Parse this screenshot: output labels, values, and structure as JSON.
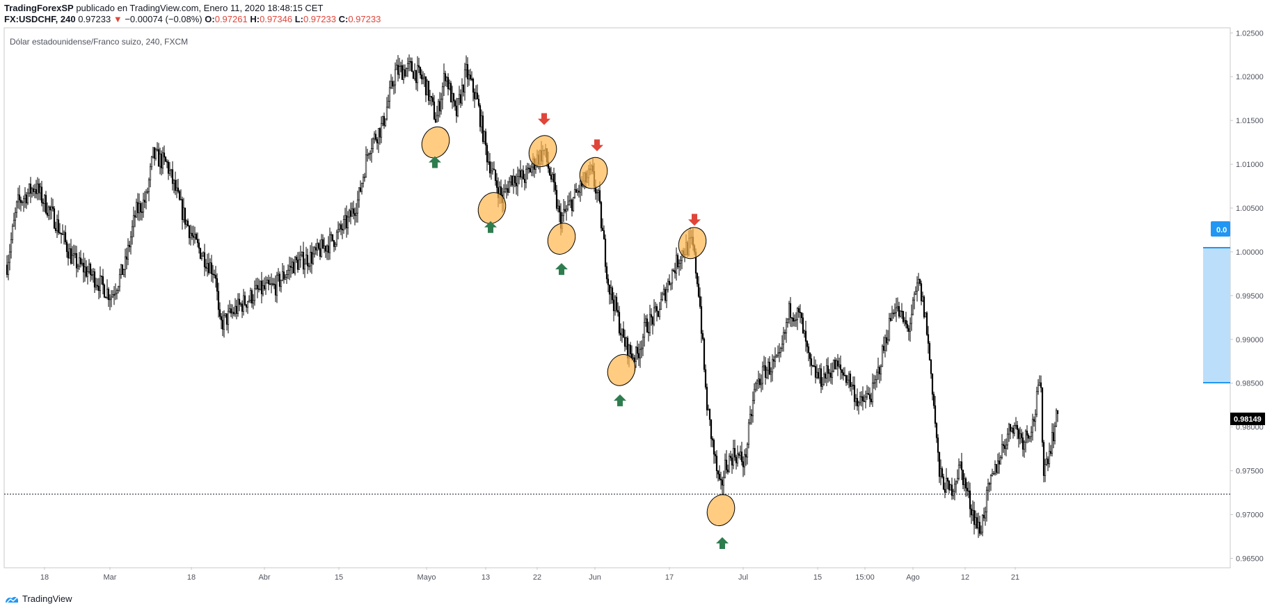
{
  "header": {
    "author": "TradingForexSP",
    "published_text": "publicado en TradingView.com, Enero 11, 2020 18:48:15 CET",
    "symbol": "FX:USDCHF, 240",
    "last": "0.97233",
    "change": "−0.00074 (−0.08%)",
    "o_label": "O:",
    "o": "0.97261",
    "h_label": "H:",
    "h": "0.97346",
    "l_label": "L:",
    "l": "0.97233",
    "c_label": "C:",
    "c": "0.97233"
  },
  "chart_title": "Dólar estadounidense/Franco suizo, 240, FXCM",
  "footer": {
    "brand": "TradingView"
  },
  "colors": {
    "up_arrow": "#2e7d4f",
    "down_arrow": "#e0453a",
    "ellipse": "#ffb74d",
    "candle": "#000000",
    "range_box": "#bbdefb",
    "range_line": "#2196f3"
  },
  "chart_data": {
    "type": "candlestick",
    "y_axis": {
      "ticks": [
        "1.02500",
        "1.02000",
        "1.01500",
        "1.01000",
        "1.00500",
        "1.00000",
        "0.99500",
        "0.99000",
        "0.98500",
        "0.98000",
        "0.97500",
        "0.97000",
        "0.96500"
      ],
      "range": [
        0.964,
        1.0255
      ]
    },
    "x_axis": {
      "labels": [
        "18",
        "Mar",
        "18",
        "Abr",
        "15",
        "Mayo",
        "13",
        "22",
        "Jun",
        "17",
        "Jul",
        "15",
        "15:00",
        "Ago",
        "12",
        "21"
      ]
    },
    "current_price_label": "0.98149",
    "blue_tag_label": "0.0",
    "horizontal_line_price": 0.97233,
    "price_path": [
      [
        0,
        0.9985
      ],
      [
        15,
        1.0055
      ],
      [
        40,
        1.0075
      ],
      [
        70,
        1.0035
      ],
      [
        95,
        0.999
      ],
      [
        120,
        0.9975
      ],
      [
        150,
        0.995
      ],
      [
        170,
        0.9985
      ],
      [
        185,
        1.0045
      ],
      [
        200,
        1.006
      ],
      [
        210,
        1.011
      ],
      [
        230,
        1.01
      ],
      [
        250,
        1.005
      ],
      [
        270,
        1.001
      ],
      [
        300,
        0.9975
      ],
      [
        305,
        0.9915
      ],
      [
        330,
        0.9935
      ],
      [
        360,
        0.9955
      ],
      [
        385,
        0.996
      ],
      [
        410,
        0.9985
      ],
      [
        440,
        0.9995
      ],
      [
        470,
        1.0015
      ],
      [
        490,
        1.0035
      ],
      [
        505,
        1.006
      ],
      [
        520,
        1.012
      ],
      [
        540,
        1.0145
      ],
      [
        558,
        1.0205
      ],
      [
        580,
        1.021
      ],
      [
        600,
        1.0195
      ],
      [
        617,
        1.015
      ],
      [
        630,
        1.0205
      ],
      [
        645,
        1.0155
      ],
      [
        660,
        1.0205
      ],
      [
        675,
        1.0175
      ],
      [
        690,
        1.011
      ],
      [
        700,
        1.0085
      ],
      [
        712,
        1.006
      ],
      [
        725,
        1.0085
      ],
      [
        745,
        1.0085
      ],
      [
        760,
        1.0105
      ],
      [
        772,
        1.0115
      ],
      [
        785,
        1.0075
      ],
      [
        795,
        1.0035
      ],
      [
        810,
        1.0055
      ],
      [
        825,
        1.0075
      ],
      [
        840,
        1.009
      ],
      [
        850,
        1.006
      ],
      [
        865,
        0.996
      ],
      [
        875,
        0.9935
      ],
      [
        885,
        0.99
      ],
      [
        895,
        0.9885
      ],
      [
        905,
        0.988
      ],
      [
        918,
        0.9915
      ],
      [
        935,
        0.993
      ],
      [
        955,
        0.9975
      ],
      [
        970,
        1.0
      ],
      [
        985,
        1.001
      ],
      [
        995,
        0.995
      ],
      [
        1005,
        0.983
      ],
      [
        1015,
        0.9775
      ],
      [
        1025,
        0.9725
      ],
      [
        1032,
        0.9755
      ],
      [
        1045,
        0.977
      ],
      [
        1060,
        0.976
      ],
      [
        1075,
        0.9845
      ],
      [
        1090,
        0.9865
      ],
      [
        1110,
        0.9875
      ],
      [
        1125,
        0.9935
      ],
      [
        1140,
        0.9925
      ],
      [
        1155,
        0.9865
      ],
      [
        1170,
        0.9855
      ],
      [
        1190,
        0.987
      ],
      [
        1210,
        0.9855
      ],
      [
        1225,
        0.9825
      ],
      [
        1245,
        0.984
      ],
      [
        1260,
        0.989
      ],
      [
        1275,
        0.994
      ],
      [
        1295,
        0.991
      ],
      [
        1310,
        0.9965
      ],
      [
        1320,
        0.9925
      ],
      [
        1330,
        0.9845
      ],
      [
        1340,
        0.9745
      ],
      [
        1355,
        0.9725
      ],
      [
        1370,
        0.9755
      ],
      [
        1385,
        0.971
      ],
      [
        1398,
        0.968
      ],
      [
        1410,
        0.9725
      ],
      [
        1430,
        0.9775
      ],
      [
        1445,
        0.9805
      ],
      [
        1460,
        0.9785
      ],
      [
        1475,
        0.9805
      ],
      [
        1485,
        0.9855
      ],
      [
        1490,
        0.975
      ],
      [
        1500,
        0.978
      ],
      [
        1510,
        0.9815
      ]
    ],
    "annotations": {
      "ellipses": [
        [
          616,
          1.0125
        ],
        [
          697,
          1.005
        ],
        [
          770,
          1.0115
        ],
        [
          797,
          1.0015
        ],
        [
          843,
          1.009
        ],
        [
          883,
          0.9865
        ],
        [
          985,
          1.001
        ],
        [
          1026,
          0.9705
        ]
      ],
      "up_arrows": [
        [
          615,
          1.0102
        ],
        [
          695,
          1.0028
        ],
        [
          797,
          0.998
        ],
        [
          881,
          0.983
        ],
        [
          1028,
          0.9667
        ]
      ],
      "down_arrows": [
        [
          772,
          1.0152
        ],
        [
          848,
          1.0122
        ],
        [
          988,
          1.0037
        ]
      ]
    }
  }
}
